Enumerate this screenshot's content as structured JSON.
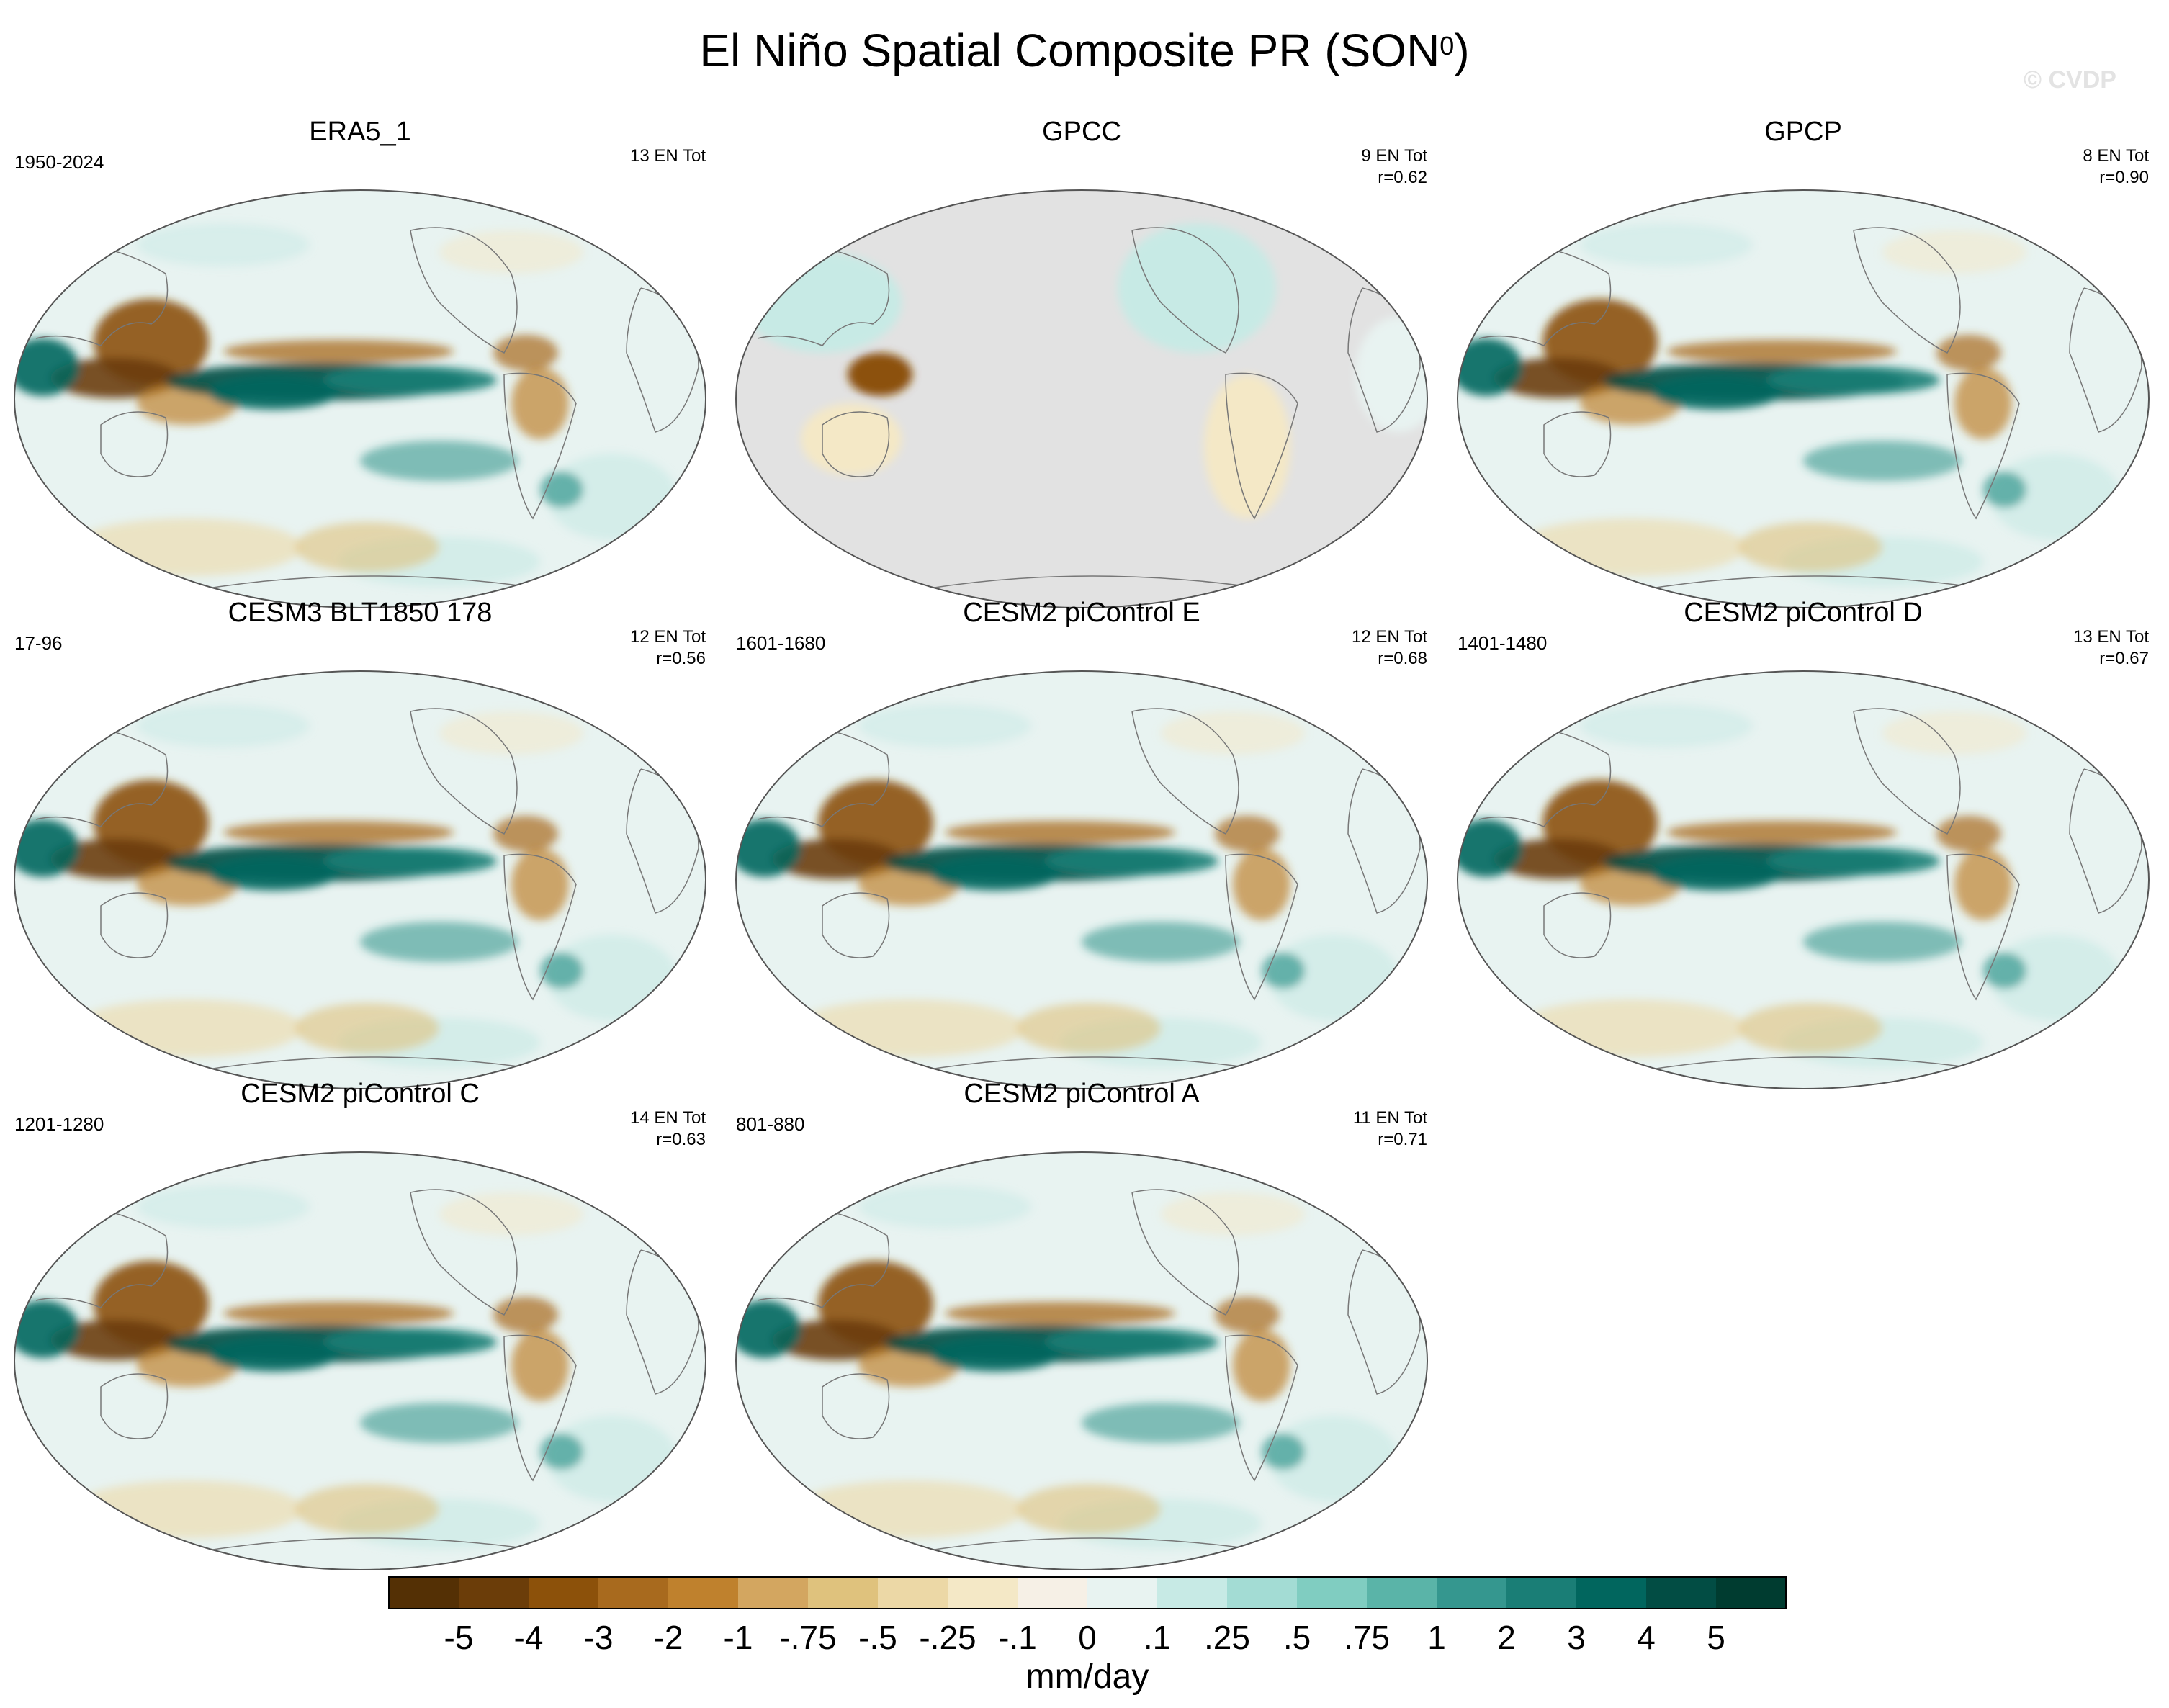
{
  "figure": {
    "title_main": "El Niño Spatial Composite PR (SON",
    "title_sup": "0",
    "title_close": ")",
    "watermark": "© CVDP"
  },
  "chart_data": {
    "type": "heatmap",
    "title": "El Niño Spatial Composite PR (SON0)",
    "projection": "Robinson (Pacific-centered)",
    "panels": [
      {
        "title": "ERA5_1",
        "period": "1950-2024",
        "count": "13 EN Tot",
        "r": "",
        "land_only": false
      },
      {
        "title": "GPCC",
        "period": "",
        "count": "9 EN Tot",
        "r": "r=0.62",
        "land_only": true
      },
      {
        "title": "GPCP",
        "period": "",
        "count": "8 EN Tot",
        "r": "r=0.90",
        "land_only": false
      },
      {
        "title": "CESM3 BLT1850 178",
        "period": "17-96",
        "count": "12 EN Tot",
        "r": "r=0.56",
        "land_only": false
      },
      {
        "title": "CESM2 piControl E",
        "period": "1601-1680",
        "count": "12 EN Tot",
        "r": "r=0.68",
        "land_only": false
      },
      {
        "title": "CESM2 piControl D",
        "period": "1401-1480",
        "count": "13 EN Tot",
        "r": "r=0.67",
        "land_only": false
      },
      {
        "title": "CESM2 piControl C",
        "period": "1201-1280",
        "count": "14 EN Tot",
        "r": "r=0.63",
        "land_only": false
      },
      {
        "title": "CESM2 piControl A",
        "period": "801-880",
        "count": "11 EN Tot",
        "r": "r=0.71",
        "land_only": false
      }
    ],
    "colorbar": {
      "unit_label": "mm/day",
      "tick_labels": [
        "-5",
        "-4",
        "-3",
        "-2",
        "-1",
        "-.75",
        "-.5",
        "-.25",
        "-.1",
        "0",
        ".1",
        ".25",
        ".5",
        ".75",
        "1",
        "2",
        "3",
        "4",
        "5"
      ],
      "colors": [
        "#543005",
        "#6b3d09",
        "#8c510a",
        "#a86a1e",
        "#bf812d",
        "#d3a660",
        "#dfc27d",
        "#ecd8a6",
        "#f4e8c6",
        "#f6f0e6",
        "#e8f3f1",
        "#c7eae5",
        "#a3dcd4",
        "#80cdc1",
        "#5ab4a8",
        "#35978f",
        "#1a7e76",
        "#01665e",
        "#024d44",
        "#003c30"
      ]
    }
  }
}
